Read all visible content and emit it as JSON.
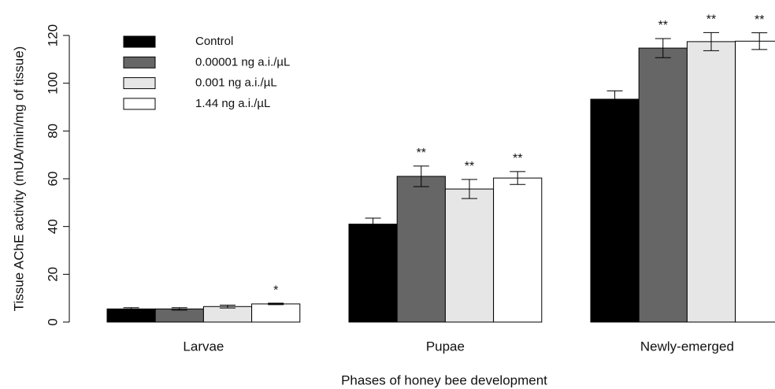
{
  "chart_data": {
    "type": "bar",
    "categories": [
      "Larvae",
      "Pupae",
      "Newly-emerged"
    ],
    "x_label": "Phases of honey bee development",
    "y_label": "Tissue AChE activity (mUA/min/mg of tissue)",
    "ylim": [
      0,
      120
    ],
    "yticks": [
      0,
      20,
      40,
      60,
      80,
      100,
      120
    ],
    "grid": false,
    "legend_position": "top-left",
    "series": [
      {
        "name": "Control",
        "color": "#000000",
        "values": [
          5.5,
          41,
          93.3
        ],
        "errors": [
          0.5,
          2.5,
          3.5
        ],
        "significance": [
          null,
          null,
          null
        ]
      },
      {
        "name": "0.00001 ng a.i./µL",
        "color": "#666666",
        "values": [
          5.5,
          61,
          114.7
        ],
        "errors": [
          0.5,
          4.3,
          4
        ],
        "significance": [
          null,
          "**",
          "**"
        ]
      },
      {
        "name": "0.001 ng a.i./µL",
        "color": "#e6e6e6",
        "values": [
          6.5,
          55.7,
          117.4
        ],
        "errors": [
          0.6,
          4,
          3.8
        ],
        "significance": [
          null,
          "**",
          "**"
        ]
      },
      {
        "name": "1.44 ng a.i./µL",
        "color": "#ffffff",
        "values": [
          7.6,
          60.3,
          117.6
        ],
        "errors": [
          0.3,
          2.7,
          3.5
        ],
        "significance": [
          "*",
          "**",
          "**"
        ]
      }
    ]
  }
}
